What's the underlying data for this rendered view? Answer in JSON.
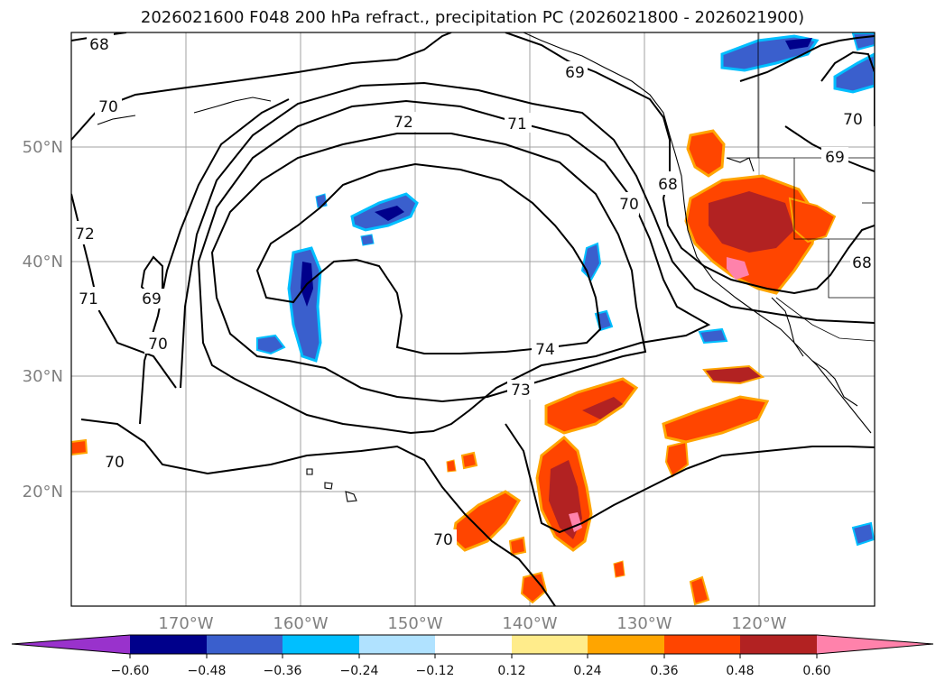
{
  "title": "2026021600 F048 200 hPa refract., precipitation PC (2026021800 - 2026021900)",
  "map": {
    "lon_labels": [
      "170°W",
      "160°W",
      "150°W",
      "140°W",
      "130°W",
      "120°W"
    ],
    "lat_labels": [
      "50°N",
      "40°N",
      "30°N",
      "20°N"
    ],
    "contour_labels": [
      "68",
      "69",
      "70",
      "71",
      "72",
      "73",
      "74"
    ],
    "colors": {
      "contour": "#000000",
      "grid": "#a0a0a0"
    }
  },
  "colorbar": {
    "ticks": [
      "−0.60",
      "−0.48",
      "−0.36",
      "−0.24",
      "−0.12",
      "0.12",
      "0.24",
      "0.36",
      "0.48",
      "0.60"
    ],
    "colors": [
      "#9932cc",
      "#00008b",
      "#3a5fcd",
      "#00bfff",
      "#b0e2ff",
      "#ffffff",
      "#ffec8b",
      "#ffa500",
      "#ff4500",
      "#b22222",
      "#ff82ab"
    ]
  }
}
